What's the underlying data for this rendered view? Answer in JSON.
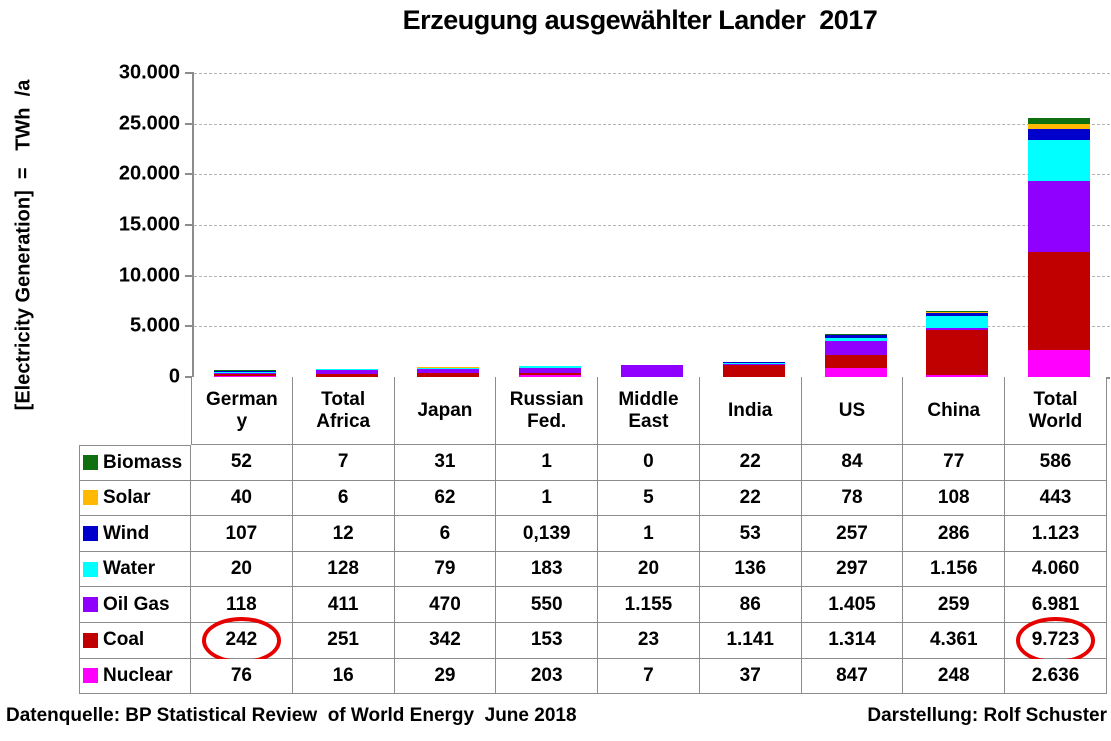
{
  "title": "Erzeugung ausgewählter Lander  2017",
  "y_axis": {
    "label": "[Electricity Generation]  =   TWh  /a",
    "ticks": [
      "30.000",
      "25.000",
      "20.000",
      "15.000",
      "10.000",
      "5.000",
      "0"
    ]
  },
  "footer": {
    "left": "Datenquelle: BP Statistical Review  of World Energy  June 2018",
    "right": "Darstellung: Rolf Schuster"
  },
  "colors": {
    "axis": "#8c8c8c",
    "gridline": "#b3b3b3",
    "table_border": "#8c8c8c",
    "circle_annotation": "#e60000"
  },
  "chart_data": {
    "type": "bar",
    "stacked": true,
    "title": "Erzeugung ausgewählter Lander  2017",
    "ylabel": "[Electricity Generation] = TWh /a",
    "ylim": [
      0,
      30000
    ],
    "grid": "dashed horizontal at every 5.000",
    "legend_position": "table first column, top-to-bottom",
    "categories": [
      "Germany",
      "Total Africa",
      "Japan",
      "Russian Fed.",
      "Middle East",
      "India",
      "US",
      "China",
      "Total World"
    ],
    "stack_order_bottom_to_top": [
      "Nuclear",
      "Coal",
      "Oil Gas",
      "Water",
      "Wind",
      "Solar",
      "Biomass"
    ],
    "series": [
      {
        "name": "Biomass",
        "color": "#107010",
        "values": [
          52,
          7,
          31,
          1,
          0,
          22,
          84,
          77,
          586
        ],
        "labels": [
          "52",
          "7",
          "31",
          "1",
          "0",
          "22",
          "84",
          "77",
          "586"
        ]
      },
      {
        "name": "Solar",
        "color": "#ffb900",
        "values": [
          40,
          6,
          62,
          1,
          5,
          22,
          78,
          108,
          443
        ],
        "labels": [
          "40",
          "6",
          "62",
          "1",
          "5",
          "22",
          "78",
          "108",
          "443"
        ]
      },
      {
        "name": "Wind",
        "color": "#0000cc",
        "values": [
          107,
          12,
          6,
          0.139,
          1,
          53,
          257,
          286,
          1123
        ],
        "labels": [
          "107",
          "12",
          "6",
          "0,139",
          "1",
          "53",
          "257",
          "286",
          "1.123"
        ]
      },
      {
        "name": "Water",
        "color": "#00ffff",
        "values": [
          20,
          128,
          79,
          183,
          20,
          136,
          297,
          1156,
          4060
        ],
        "labels": [
          "20",
          "128",
          "79",
          "183",
          "20",
          "136",
          "297",
          "1.156",
          "4.060"
        ]
      },
      {
        "name": "Oil Gas",
        "color": "#8f00ff",
        "values": [
          118,
          411,
          470,
          550,
          1155,
          86,
          1405,
          259,
          6981
        ],
        "labels": [
          "118",
          "411",
          "470",
          "550",
          "1.155",
          "86",
          "1.405",
          "259",
          "6.981"
        ]
      },
      {
        "name": "Coal",
        "color": "#c00000",
        "values": [
          242,
          251,
          342,
          153,
          23,
          1141,
          1314,
          4361,
          9723
        ],
        "labels": [
          "242",
          "251",
          "342",
          "153",
          "23",
          "1.141",
          "1.314",
          "4.361",
          "9.723"
        ]
      },
      {
        "name": "Nuclear",
        "color": "#ff00ff",
        "values": [
          76,
          16,
          29,
          203,
          7,
          37,
          847,
          248,
          2636
        ],
        "labels": [
          "76",
          "16",
          "29",
          "203",
          "7",
          "37",
          "847",
          "248",
          "2.636"
        ]
      }
    ]
  },
  "table": {
    "header_lines": [
      [
        "German",
        "y"
      ],
      [
        "Total",
        "Africa"
      ],
      [
        "Japan"
      ],
      [
        "Russian",
        "Fed."
      ],
      [
        "Middle",
        "East"
      ],
      [
        "India"
      ],
      [
        "US"
      ],
      [
        "China"
      ],
      [
        "Total",
        "World"
      ]
    ],
    "circled_cells": [
      {
        "series": "Coal",
        "category_index": 0,
        "label": "242"
      },
      {
        "series": "Coal",
        "category_index": 8,
        "label": "9.723"
      }
    ]
  }
}
